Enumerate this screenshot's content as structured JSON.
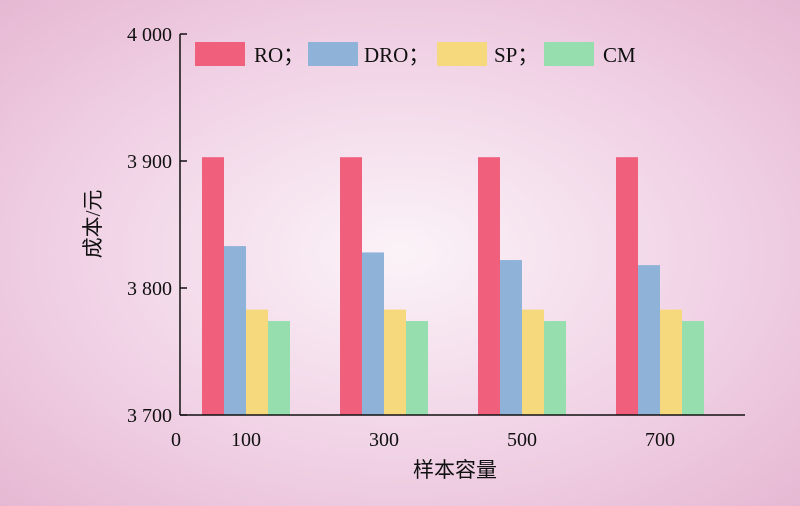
{
  "chart_data": {
    "type": "bar",
    "categories": [
      "100",
      "300",
      "500",
      "700"
    ],
    "series": [
      {
        "name": "RO",
        "legend_label": "RO；",
        "color": "#f0607d",
        "values": [
          3903,
          3903,
          3903,
          3903
        ]
      },
      {
        "name": "DRO",
        "legend_label": "DRO；",
        "color": "#8eb2d8",
        "values": [
          3833,
          3828,
          3822,
          3818
        ]
      },
      {
        "name": "SP",
        "legend_label": "SP；",
        "color": "#f6d97d",
        "values": [
          3783,
          3783,
          3783,
          3783
        ]
      },
      {
        "name": "CM",
        "legend_label": "CM",
        "color": "#97deaf",
        "values": [
          3774,
          3774,
          3774,
          3774
        ]
      }
    ],
    "xlabel": "样本容量",
    "ylabel": "成本/元",
    "ylim": [
      3700,
      4000
    ],
    "yticks": [
      "3 700",
      "3 800",
      "3 900",
      "4 000"
    ],
    "x_origin_label": "0",
    "legend_position": "top",
    "grid": false
  }
}
